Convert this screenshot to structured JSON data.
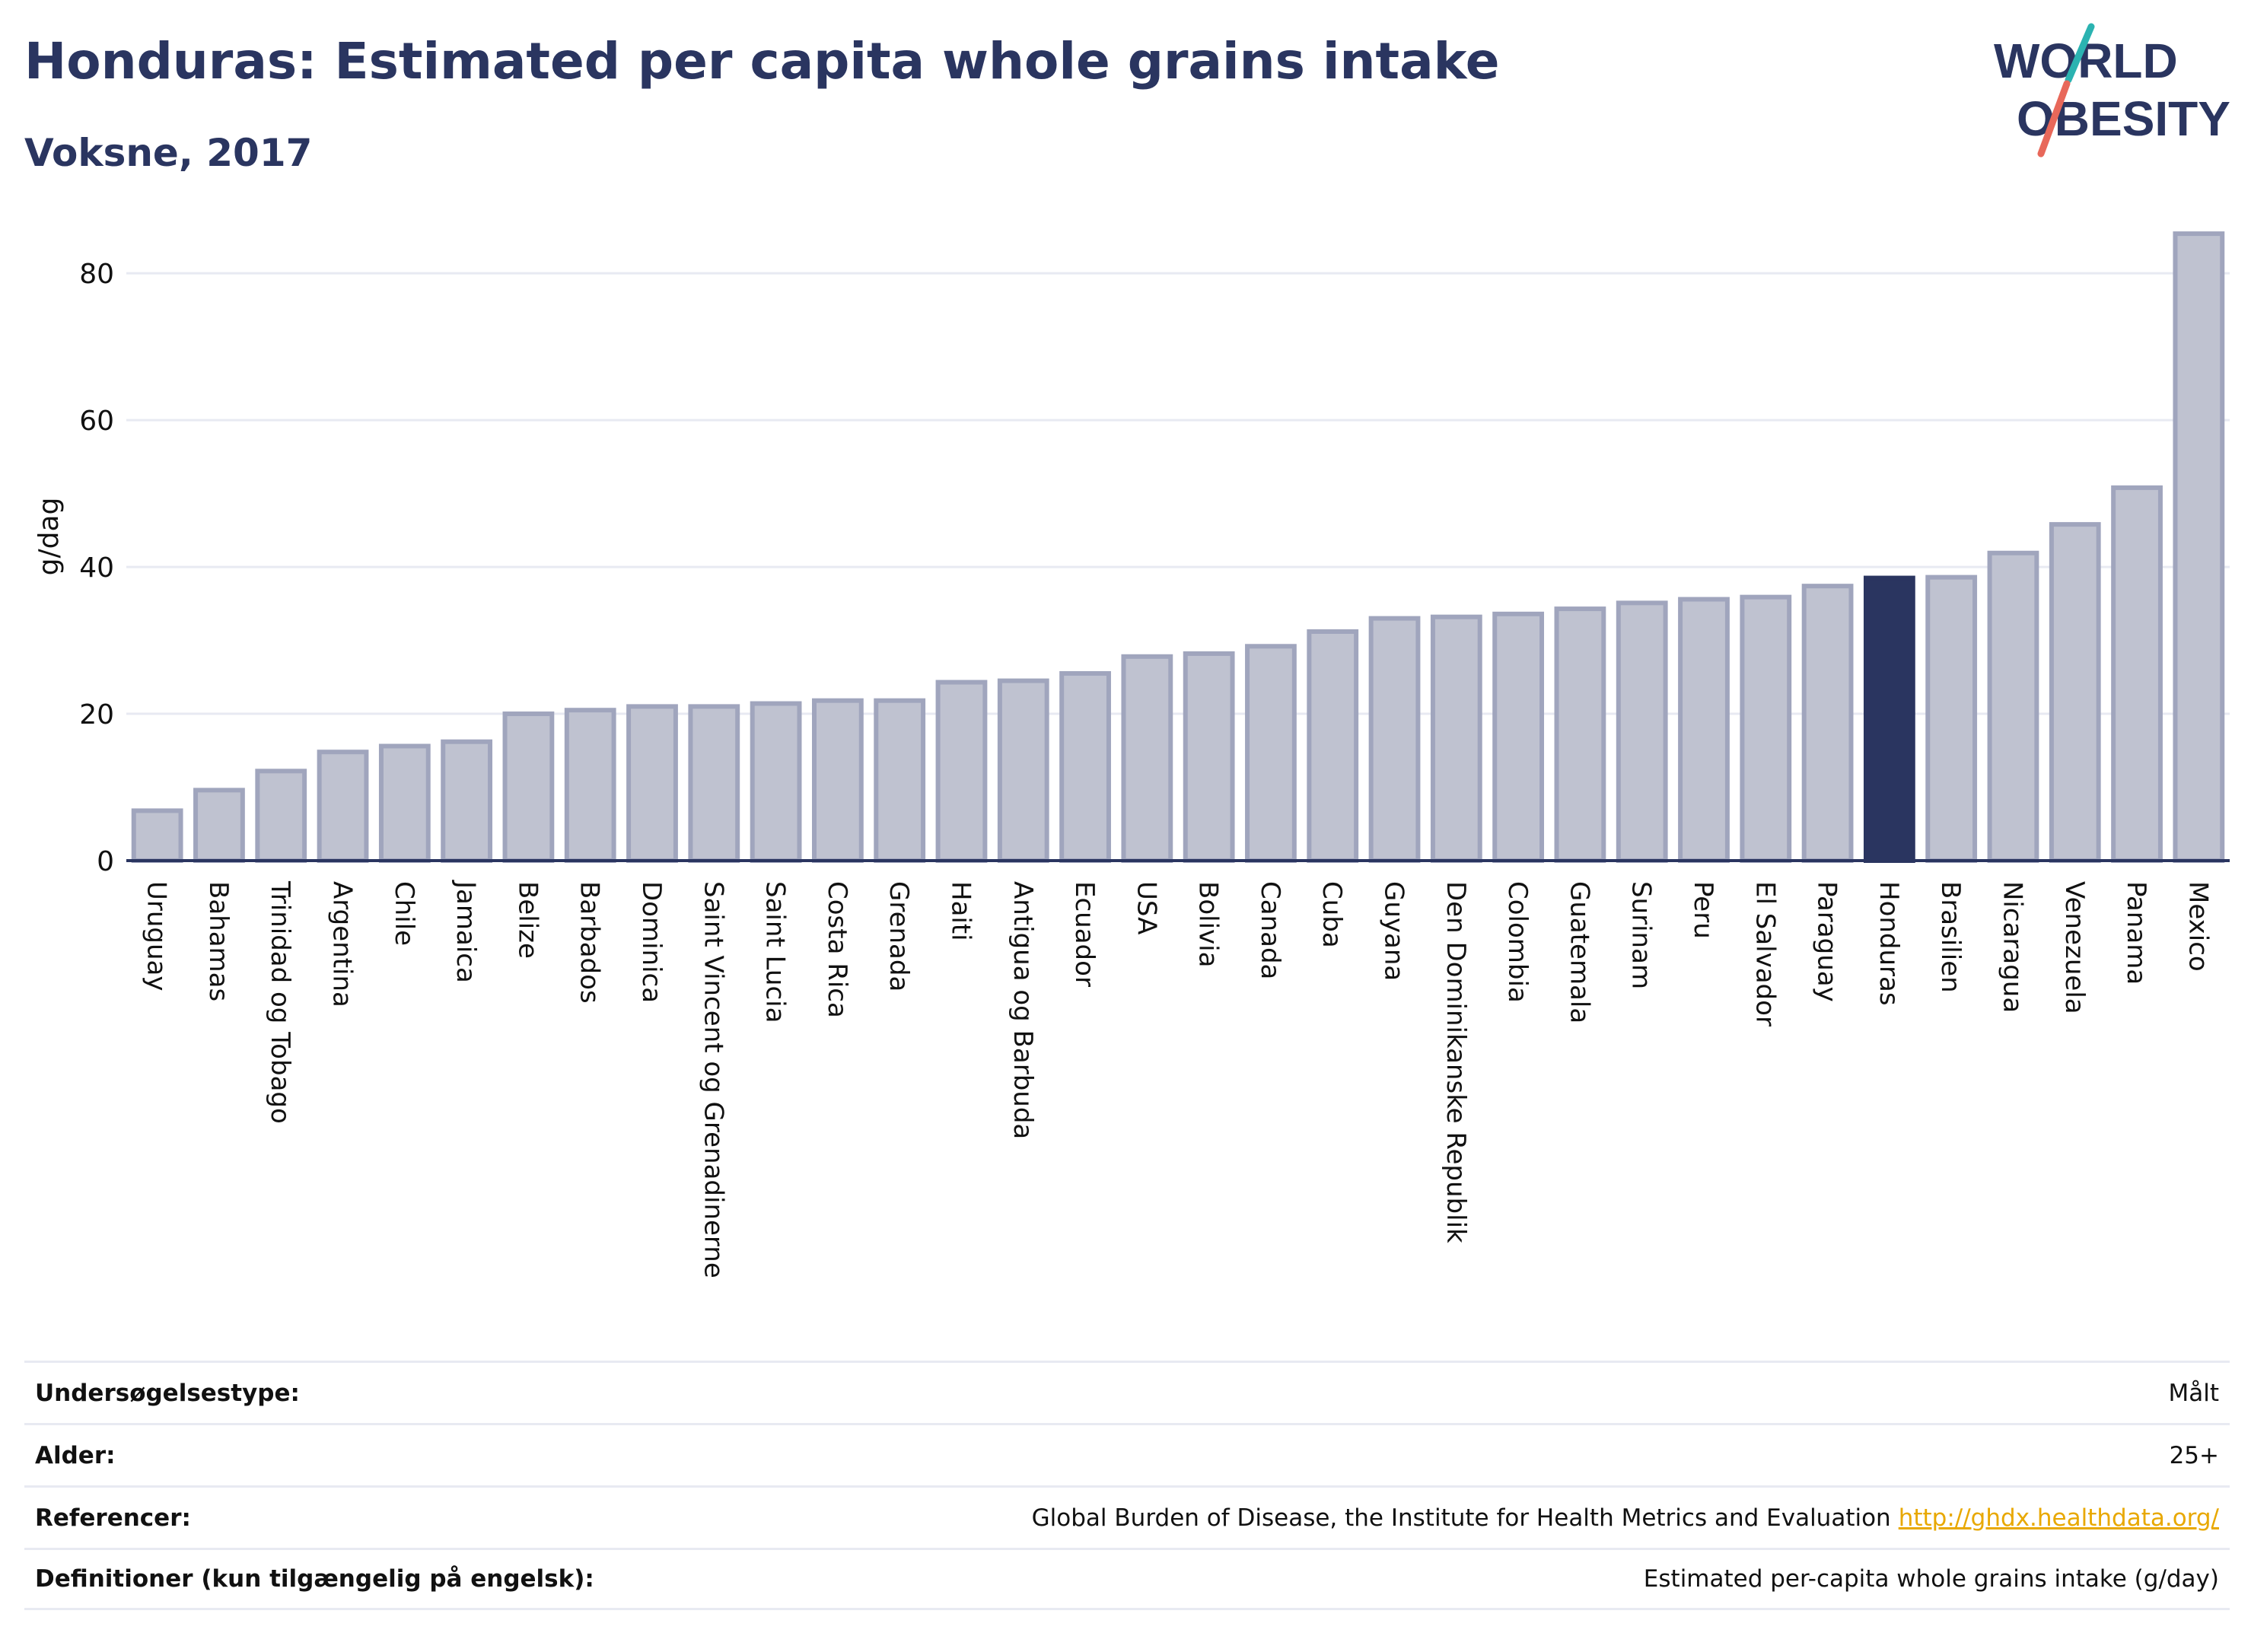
{
  "header": {
    "title": "Honduras: Estimated per capita whole grains intake",
    "subtitle": "Voksne, 2017"
  },
  "logo": {
    "line1": "WORLD",
    "line2": "OBESITY",
    "colors": {
      "text": "#2a3560",
      "slash_top": "#2bb3b1",
      "slash_bottom": "#e8685a"
    }
  },
  "colors": {
    "bar_default": "#bfc2d0",
    "bar_default_stroke": "#a0a5bd",
    "bar_highlight": "#2a3560",
    "axis": "#2a3560",
    "grid": "#e8eaf2"
  },
  "chart_data": {
    "type": "bar",
    "ylabel": "g/dag",
    "ylim": [
      0,
      88
    ],
    "yticks": [
      0,
      20,
      40,
      60,
      80
    ],
    "grid": true,
    "highlight": "Honduras",
    "categories": [
      "Uruguay",
      "Bahamas",
      "Trinidad og Tobago",
      "Argentina",
      "Chile",
      "Jamaica",
      "Belize",
      "Barbados",
      "Dominica",
      "Saint Vincent og Grenadinerne",
      "Saint Lucia",
      "Costa Rica",
      "Grenada",
      "Haiti",
      "Antigua og Barbuda",
      "Ecuador",
      "USA",
      "Bolivia",
      "Canada",
      "Cuba",
      "Guyana",
      "Den Dominikanske Republik",
      "Colombia",
      "Guatemala",
      "Surinam",
      "Peru",
      "El Salvador",
      "Paraguay",
      "Honduras",
      "Brasilien",
      "Nicaragua",
      "Venezuela",
      "Panama",
      "Mexico"
    ],
    "values": [
      6.8,
      9.6,
      12.2,
      14.8,
      15.6,
      16.2,
      20.0,
      20.5,
      21.0,
      21.0,
      21.4,
      21.8,
      21.8,
      24.3,
      24.5,
      25.5,
      27.8,
      28.2,
      29.2,
      31.2,
      33.0,
      33.2,
      33.6,
      34.3,
      35.1,
      35.6,
      35.9,
      37.4,
      38.5,
      38.6,
      41.9,
      45.8,
      50.8,
      85.4
    ]
  },
  "info": {
    "rows": [
      {
        "label": "Undersøgelsestype:",
        "value": "Målt"
      },
      {
        "label": "Alder:",
        "value": "25+"
      },
      {
        "label": "Referencer:",
        "value": "Global Burden of Disease, the Institute for Health Metrics and Evaluation",
        "link": "http://ghdx.healthdata.org/"
      },
      {
        "label": "Definitioner (kun tilgængelig på engelsk):",
        "value": "Estimated per-capita whole grains intake (g/day)"
      }
    ]
  }
}
